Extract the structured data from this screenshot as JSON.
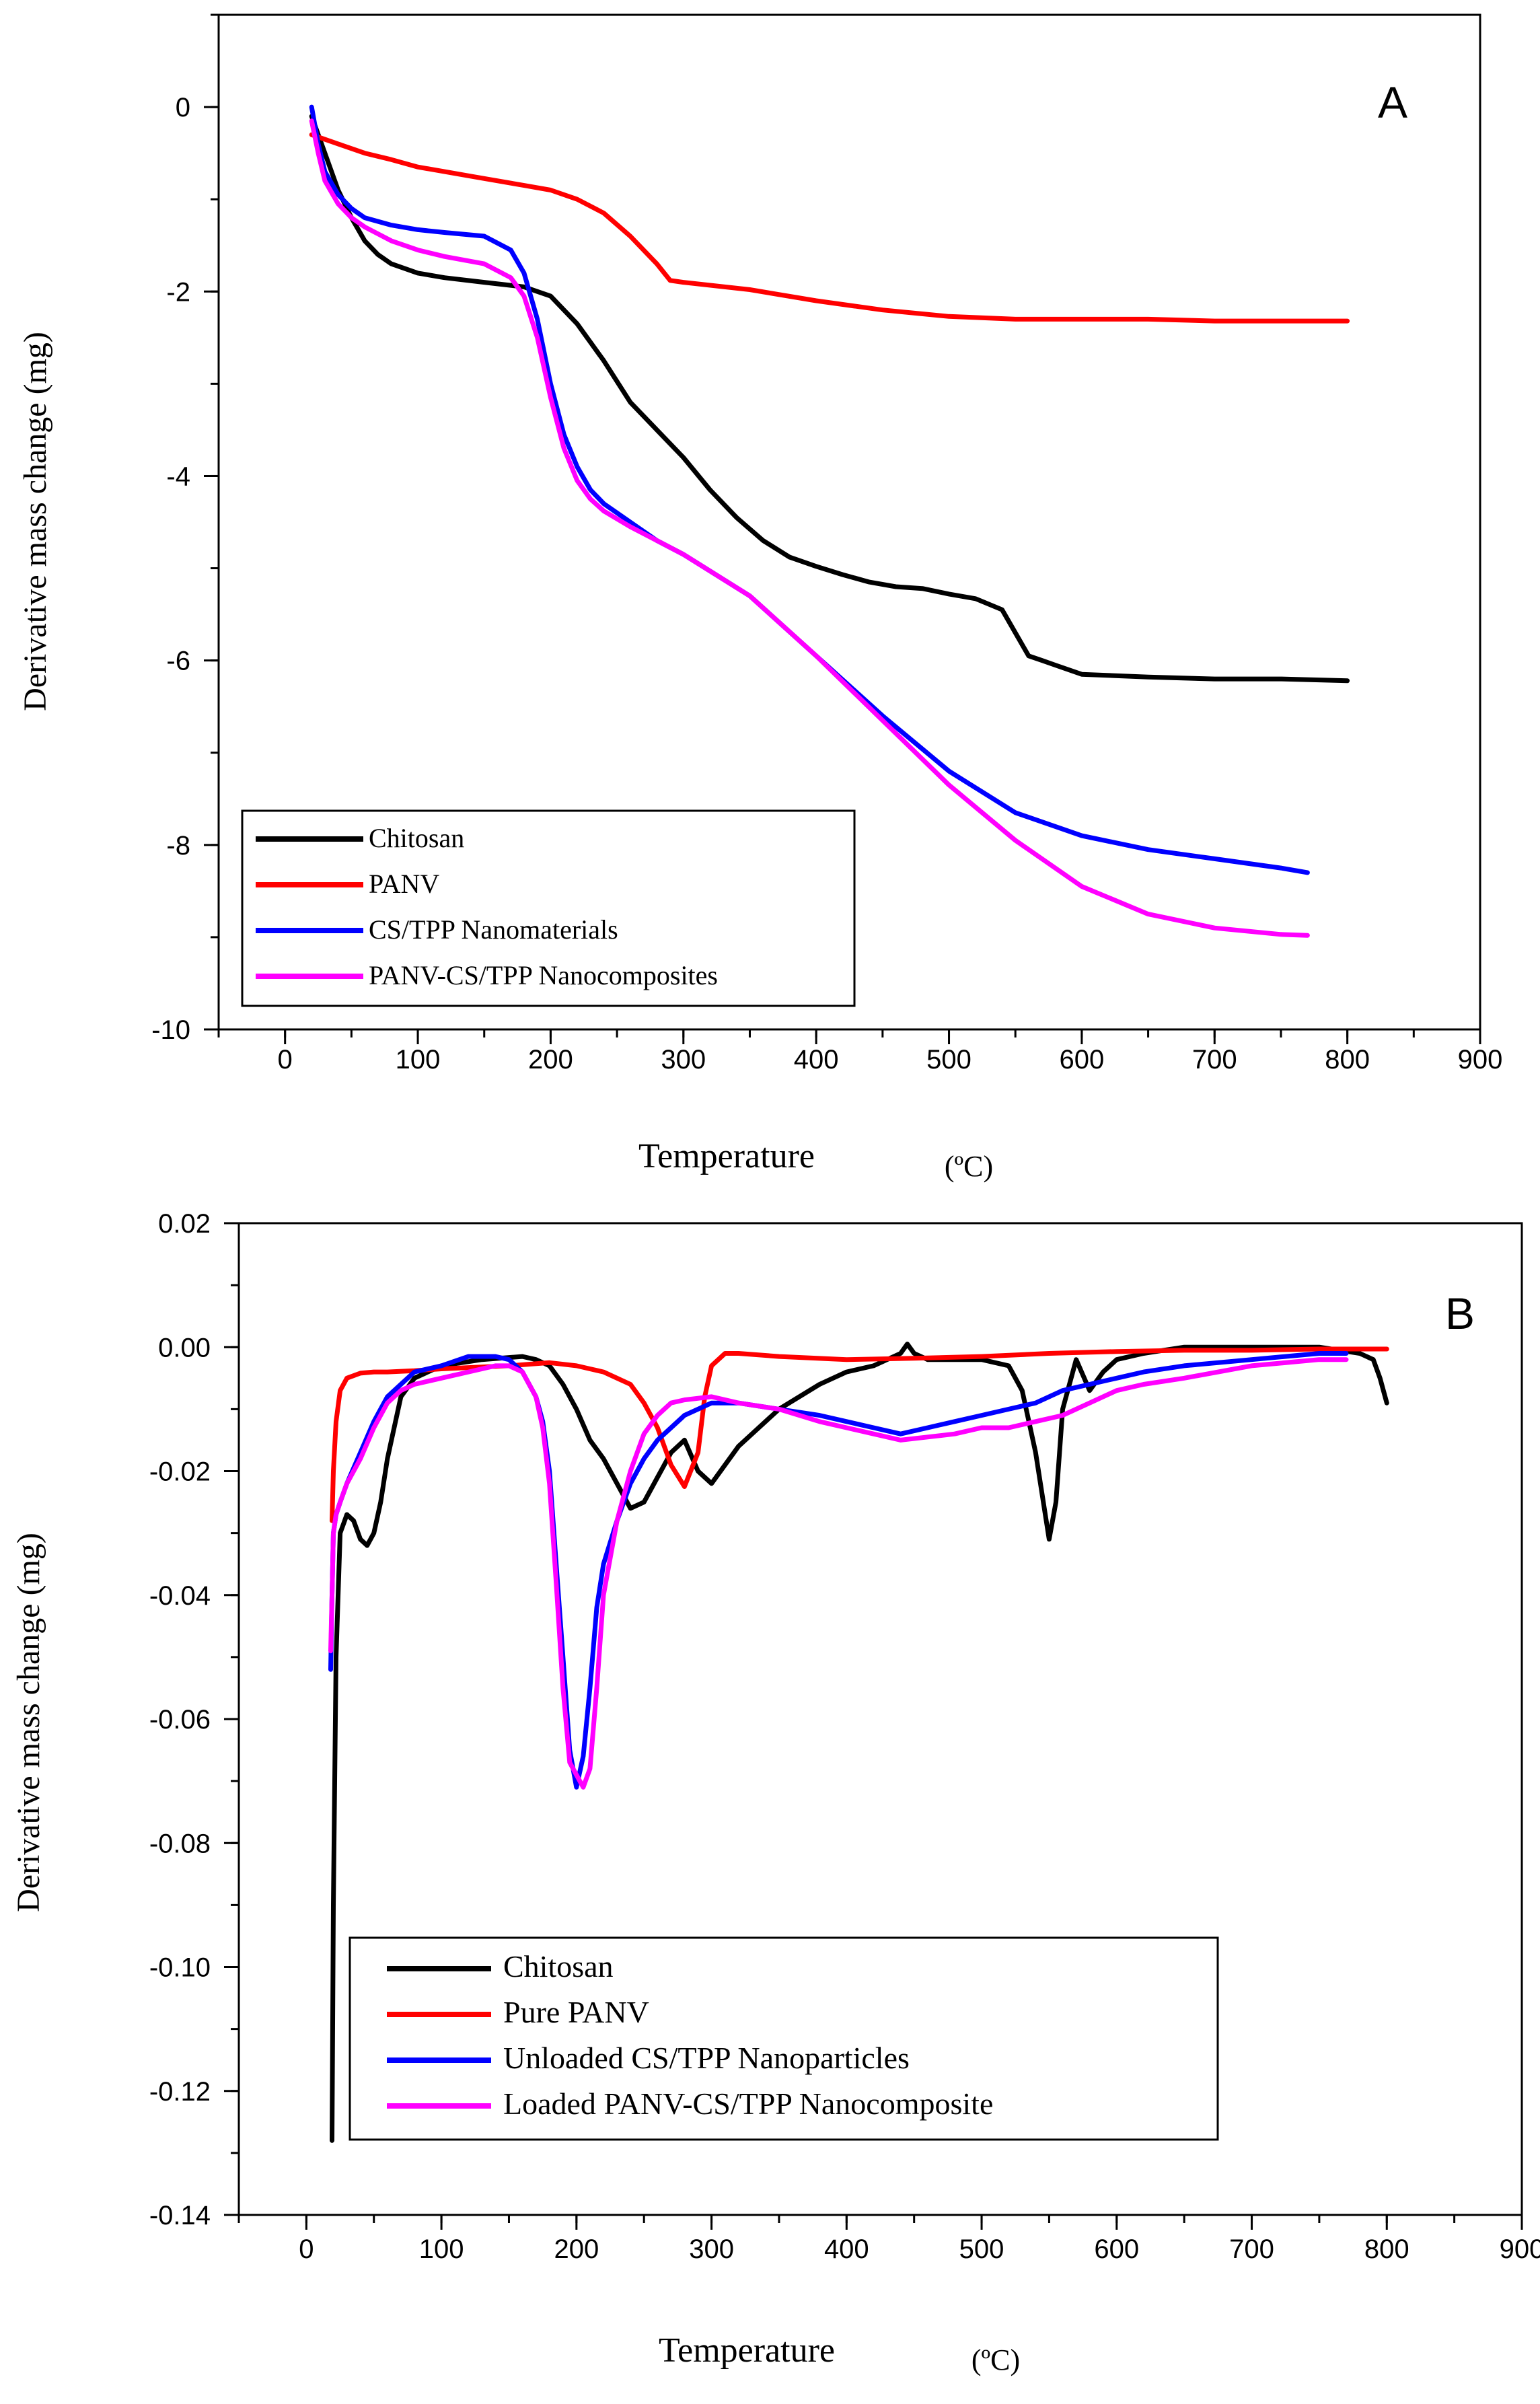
{
  "chart_data": [
    {
      "type": "line",
      "panel_label": "A",
      "xlabel_main": "Temperature",
      "xlabel_unit": "(ºC)",
      "ylabel": "Derivative mass change (mg)",
      "xlim": [
        -50,
        900
      ],
      "ylim": [
        -10,
        1.0
      ],
      "xticks": [
        0,
        100,
        200,
        300,
        400,
        500,
        600,
        700,
        800,
        900
      ],
      "xtick_labels": [
        "0",
        "100",
        "200",
        "300",
        "400",
        "500",
        "600",
        "700",
        "800",
        "900"
      ],
      "yticks": [
        0,
        -2,
        -4,
        -6,
        -8,
        -10
      ],
      "ytick_labels": [
        "0",
        "-2",
        "-4",
        "-6",
        "-8",
        "-10"
      ],
      "legend_position": "bottom-left",
      "series": [
        {
          "name": "Chitosan",
          "color": "#000000",
          "x": [
            20,
            30,
            40,
            50,
            60,
            70,
            80,
            100,
            120,
            150,
            180,
            200,
            220,
            240,
            260,
            280,
            300,
            320,
            340,
            360,
            380,
            400,
            420,
            440,
            460,
            480,
            500,
            520,
            540,
            550,
            560,
            570,
            580,
            600,
            650,
            700,
            750,
            800
          ],
          "y": [
            -0.1,
            -0.5,
            -0.9,
            -1.2,
            -1.45,
            -1.6,
            -1.7,
            -1.8,
            -1.85,
            -1.9,
            -1.95,
            -2.05,
            -2.35,
            -2.75,
            -3.2,
            -3.5,
            -3.8,
            -4.15,
            -4.45,
            -4.7,
            -4.88,
            -4.98,
            -5.07,
            -5.15,
            -5.2,
            -5.22,
            -5.28,
            -5.33,
            -5.45,
            -5.7,
            -5.95,
            -6.0,
            -6.05,
            -6.15,
            -6.18,
            -6.2,
            -6.2,
            -6.22
          ]
        },
        {
          "name": "PANV",
          "color": "#ff0000",
          "x": [
            20,
            40,
            60,
            80,
            100,
            140,
            180,
            200,
            220,
            240,
            260,
            280,
            290,
            300,
            350,
            400,
            450,
            500,
            550,
            600,
            650,
            700,
            750,
            800
          ],
          "y": [
            -0.3,
            -0.4,
            -0.5,
            -0.57,
            -0.65,
            -0.75,
            -0.85,
            -0.9,
            -1.0,
            -1.15,
            -1.4,
            -1.7,
            -1.88,
            -1.9,
            -1.98,
            -2.1,
            -2.2,
            -2.27,
            -2.3,
            -2.3,
            -2.3,
            -2.32,
            -2.32,
            -2.32
          ]
        },
        {
          "name": "CS/TPP Nanomaterials",
          "color": "#0000ff",
          "x": [
            20,
            25,
            30,
            40,
            50,
            60,
            80,
            100,
            120,
            150,
            170,
            180,
            190,
            200,
            210,
            220,
            230,
            240,
            260,
            280,
            300,
            350,
            400,
            450,
            500,
            550,
            600,
            650,
            700,
            750,
            770
          ],
          "y": [
            0.0,
            -0.4,
            -0.7,
            -0.95,
            -1.1,
            -1.2,
            -1.28,
            -1.33,
            -1.36,
            -1.4,
            -1.55,
            -1.8,
            -2.3,
            -3.0,
            -3.55,
            -3.9,
            -4.15,
            -4.3,
            -4.5,
            -4.7,
            -4.85,
            -5.3,
            -5.95,
            -6.6,
            -7.2,
            -7.65,
            -7.9,
            -8.05,
            -8.15,
            -8.25,
            -8.3
          ]
        },
        {
          "name": "PANV-CS/TPP Nanocomposites",
          "color": "#ff00ff",
          "x": [
            20,
            25,
            30,
            40,
            50,
            60,
            80,
            100,
            120,
            150,
            170,
            180,
            190,
            200,
            210,
            220,
            230,
            240,
            260,
            280,
            300,
            350,
            400,
            450,
            500,
            550,
            600,
            650,
            700,
            750,
            770
          ],
          "y": [
            -0.15,
            -0.5,
            -0.8,
            -1.05,
            -1.2,
            -1.3,
            -1.45,
            -1.55,
            -1.62,
            -1.7,
            -1.85,
            -2.05,
            -2.5,
            -3.15,
            -3.7,
            -4.05,
            -4.25,
            -4.38,
            -4.55,
            -4.7,
            -4.85,
            -5.3,
            -5.95,
            -6.65,
            -7.35,
            -7.95,
            -8.45,
            -8.75,
            -8.9,
            -8.97,
            -8.98
          ]
        }
      ]
    },
    {
      "type": "line",
      "panel_label": "B",
      "xlabel_main": "Temperature",
      "xlabel_unit": "(ºC)",
      "ylabel": "Derivative mass change (mg)",
      "xlim": [
        -50,
        900
      ],
      "ylim": [
        -0.14,
        0.02
      ],
      "xticks": [
        0,
        100,
        200,
        300,
        400,
        500,
        600,
        700,
        800,
        900
      ],
      "xtick_labels": [
        "0",
        "100",
        "200",
        "300",
        "400",
        "500",
        "600",
        "700",
        "800",
        "900"
      ],
      "yticks": [
        0.02,
        0.0,
        -0.02,
        -0.04,
        -0.06,
        -0.08,
        -0.1,
        -0.12,
        -0.14
      ],
      "ytick_labels": [
        "0.02",
        "0.00",
        "-0.02",
        "-0.04",
        "-0.06",
        "-0.08",
        "-0.10",
        "-0.12",
        "-0.14"
      ],
      "legend_position": "bottom-center",
      "series": [
        {
          "name": "Chitosan",
          "color": "#000000",
          "x": [
            19,
            20,
            22,
            25,
            30,
            35,
            40,
            45,
            50,
            55,
            60,
            70,
            80,
            90,
            100,
            130,
            160,
            170,
            180,
            190,
            200,
            210,
            220,
            230,
            240,
            250,
            260,
            270,
            280,
            290,
            300,
            320,
            350,
            380,
            400,
            420,
            440,
            445,
            450,
            460,
            480,
            500,
            520,
            530,
            540,
            550,
            555,
            560,
            570,
            580,
            590,
            600,
            620,
            650,
            700,
            750,
            780,
            790,
            795,
            800
          ],
          "y": [
            -0.128,
            -0.09,
            -0.05,
            -0.03,
            -0.027,
            -0.028,
            -0.031,
            -0.032,
            -0.03,
            -0.025,
            -0.018,
            -0.008,
            -0.005,
            -0.004,
            -0.003,
            -0.002,
            -0.0015,
            -0.002,
            -0.003,
            -0.006,
            -0.01,
            -0.015,
            -0.018,
            -0.022,
            -0.026,
            -0.025,
            -0.021,
            -0.017,
            -0.015,
            -0.02,
            -0.022,
            -0.016,
            -0.01,
            -0.006,
            -0.004,
            -0.003,
            -0.001,
            0.0005,
            -0.001,
            -0.002,
            -0.002,
            -0.002,
            -0.003,
            -0.007,
            -0.017,
            -0.031,
            -0.025,
            -0.01,
            -0.002,
            -0.007,
            -0.004,
            -0.002,
            -0.001,
            0.0,
            0.0,
            0.0,
            -0.001,
            -0.002,
            -0.005,
            -0.009
          ]
        },
        {
          "name": "Pure PANV",
          "color": "#ff0000",
          "x": [
            19,
            20,
            22,
            25,
            30,
            40,
            50,
            60,
            80,
            100,
            150,
            180,
            200,
            210,
            220,
            230,
            240,
            250,
            260,
            270,
            280,
            290,
            295,
            300,
            310,
            320,
            350,
            400,
            450,
            500,
            550,
            600,
            650,
            700,
            750,
            800
          ],
          "y": [
            -0.028,
            -0.02,
            -0.012,
            -0.007,
            -0.005,
            -0.0042,
            -0.004,
            -0.004,
            -0.0038,
            -0.0035,
            -0.003,
            -0.0025,
            -0.003,
            -0.0035,
            -0.004,
            -0.005,
            -0.006,
            -0.009,
            -0.013,
            -0.019,
            -0.0225,
            -0.017,
            -0.008,
            -0.003,
            -0.001,
            -0.001,
            -0.0015,
            -0.002,
            -0.0018,
            -0.0015,
            -0.001,
            -0.0007,
            -0.0005,
            -0.0005,
            -0.0003,
            -0.0003
          ]
        },
        {
          "name": "Unloaded CS/TPP Nanoparticles",
          "color": "#0000ff",
          "x": [
            18,
            19,
            20,
            22,
            25,
            30,
            40,
            50,
            60,
            70,
            80,
            100,
            120,
            140,
            150,
            160,
            170,
            175,
            180,
            185,
            190,
            195,
            200,
            205,
            210,
            215,
            220,
            230,
            240,
            250,
            260,
            270,
            280,
            300,
            320,
            350,
            380,
            400,
            420,
            440,
            460,
            480,
            500,
            520,
            540,
            560,
            580,
            600,
            620,
            650,
            700,
            750,
            770
          ],
          "y": [
            -0.052,
            -0.04,
            -0.03,
            -0.027,
            -0.025,
            -0.022,
            -0.017,
            -0.012,
            -0.008,
            -0.006,
            -0.004,
            -0.003,
            -0.0015,
            -0.0015,
            -0.002,
            -0.004,
            -0.008,
            -0.012,
            -0.02,
            -0.035,
            -0.05,
            -0.065,
            -0.071,
            -0.066,
            -0.055,
            -0.042,
            -0.035,
            -0.028,
            -0.022,
            -0.018,
            -0.015,
            -0.013,
            -0.011,
            -0.009,
            -0.009,
            -0.01,
            -0.011,
            -0.012,
            -0.013,
            -0.014,
            -0.013,
            -0.012,
            -0.011,
            -0.01,
            -0.009,
            -0.007,
            -0.006,
            -0.005,
            -0.004,
            -0.003,
            -0.002,
            -0.001,
            -0.001
          ]
        },
        {
          "name": "Loaded PANV-CS/TPP Nanocomposite",
          "color": "#ff00ff",
          "x": [
            18,
            19,
            20,
            22,
            25,
            30,
            40,
            50,
            60,
            70,
            80,
            100,
            120,
            140,
            150,
            160,
            170,
            175,
            180,
            185,
            190,
            195,
            200,
            205,
            210,
            215,
            220,
            230,
            240,
            250,
            260,
            270,
            280,
            300,
            320,
            350,
            380,
            400,
            420,
            440,
            460,
            480,
            500,
            520,
            540,
            560,
            580,
            600,
            620,
            650,
            700,
            750,
            770
          ],
          "y": [
            -0.049,
            -0.04,
            -0.03,
            -0.027,
            -0.025,
            -0.022,
            -0.018,
            -0.013,
            -0.009,
            -0.007,
            -0.006,
            -0.005,
            -0.004,
            -0.003,
            -0.003,
            -0.004,
            -0.008,
            -0.013,
            -0.022,
            -0.038,
            -0.055,
            -0.067,
            -0.069,
            -0.071,
            -0.068,
            -0.055,
            -0.04,
            -0.028,
            -0.02,
            -0.014,
            -0.011,
            -0.009,
            -0.0085,
            -0.008,
            -0.009,
            -0.01,
            -0.012,
            -0.013,
            -0.014,
            -0.015,
            -0.0145,
            -0.014,
            -0.013,
            -0.013,
            -0.012,
            -0.011,
            -0.009,
            -0.007,
            -0.006,
            -0.005,
            -0.003,
            -0.002,
            -0.002
          ]
        }
      ]
    }
  ]
}
